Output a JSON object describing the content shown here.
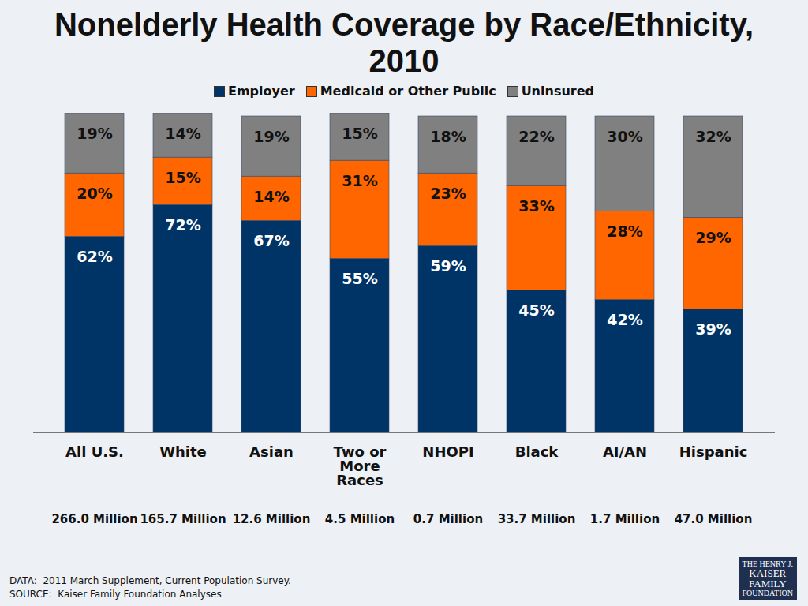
{
  "chart_data": {
    "type": "bar",
    "title": "Nonelderly Health Coverage by Race/Ethnicity, 2010",
    "categories": [
      "All U.S.",
      "White",
      "Asian",
      "Two or More Races",
      "NHOPI",
      "Black",
      "AI/AN",
      "Hispanic"
    ],
    "populations": [
      "266.0 Million",
      "165.7 Million",
      "12.6 Million",
      "4.5 Million",
      "0.7 Million",
      "33.7 Million",
      "1.7 Million",
      "47.0 Million"
    ],
    "series": [
      {
        "name": "Employer",
        "color": "#003366",
        "values": [
          62,
          72,
          67,
          55,
          59,
          45,
          42,
          39
        ],
        "value_labels": [
          "62%",
          "72%",
          "67%",
          "55%",
          "59%",
          "45%",
          "42%",
          "39%"
        ]
      },
      {
        "name": "Medicaid or Other Public",
        "color": "#ff6600",
        "values": [
          20,
          15,
          14,
          31,
          23,
          33,
          28,
          29
        ],
        "value_labels": [
          "20%",
          "15%",
          "14%",
          "31%",
          "23%",
          "33%",
          "28%",
          "29%"
        ]
      },
      {
        "name": "Uninsured",
        "color": "#808080",
        "values": [
          19,
          14,
          19,
          15,
          18,
          22,
          30,
          32
        ],
        "value_labels": [
          "19%",
          "14%",
          "19%",
          "15%",
          "18%",
          "22%",
          "30%",
          "32%"
        ]
      }
    ],
    "ylim": [
      0,
      101
    ],
    "stacked": true,
    "data_labels": true,
    "tick_labels": "x",
    "legend": "top",
    "source": [
      "DATA:  2011 March Supplement, Current Population Survey.",
      "SOURCE:  Kaiser Family Foundation Analyses"
    ],
    "logo": [
      "THE HENRY J.",
      "KAISER",
      "FAMILY",
      "FOUNDATION"
    ]
  }
}
